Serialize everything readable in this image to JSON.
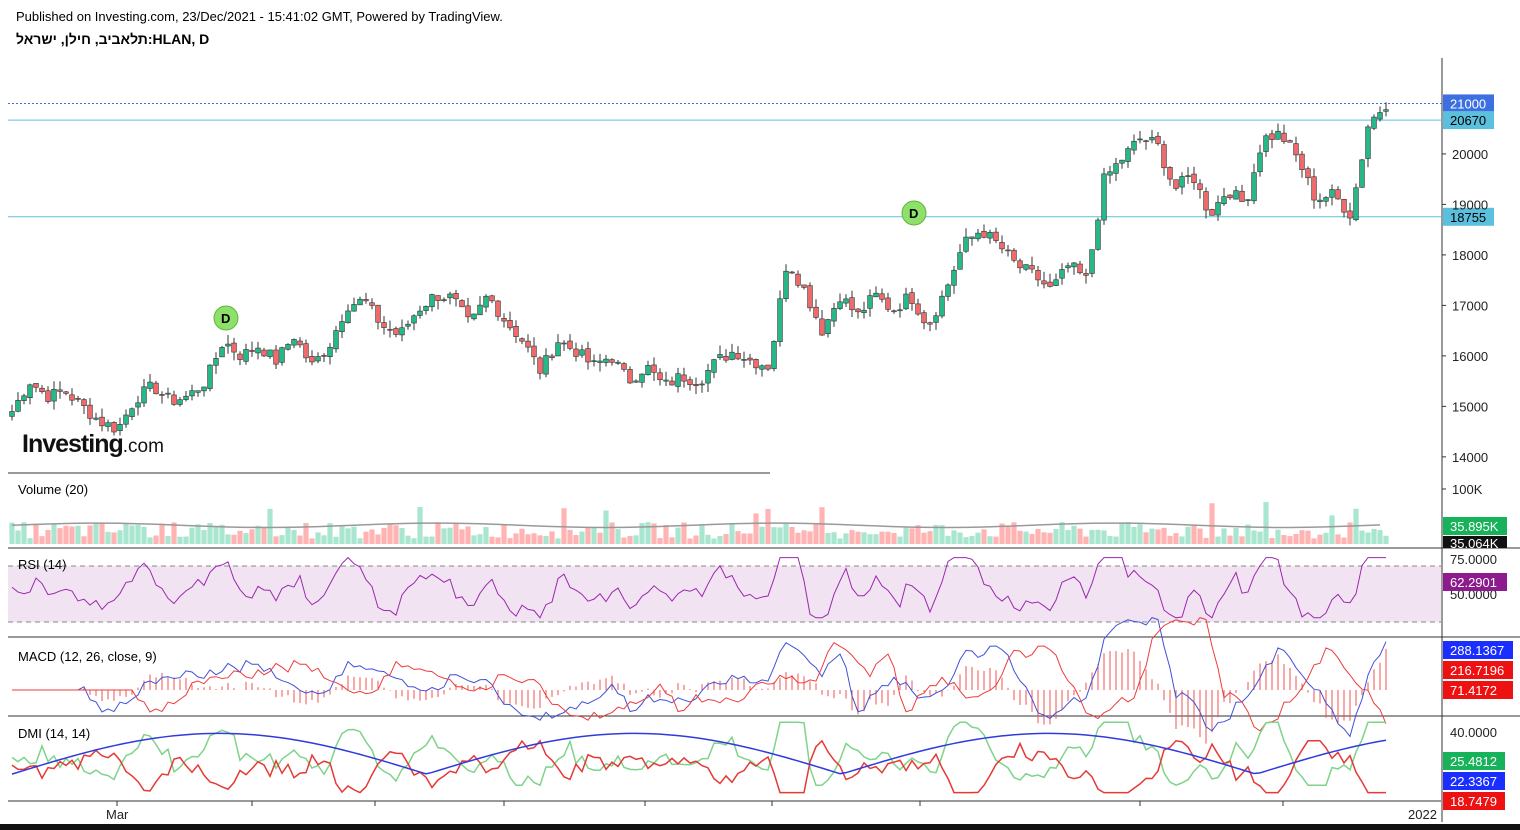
{
  "header": {
    "published": "Published on Investing.com, 23/Dec/2021 - 15:41:02 GMT, Powered by TradingView.",
    "symbol": "תלאביב, חילן, ישראל:HLAN, D"
  },
  "logo": {
    "main": "Investing",
    "suffix": ".com"
  },
  "colors": {
    "up": "#26a69a",
    "down": "#ef5350",
    "bull_fill": "#26b888",
    "bear_fill": "#ef6b6b",
    "hline": "#5bc0de",
    "last_price": "#3d6fe0"
  },
  "chart_data": [
    {
      "type": "candlestick",
      "pane": "price",
      "ylim": [
        13700,
        21900
      ],
      "y_ticks": [
        "14000",
        "15000",
        "16000",
        "17000",
        "18000",
        "19000",
        "20000"
      ],
      "x_ticks": [
        "Mar",
        "2022"
      ],
      "horizontal_levels": [
        {
          "label": "21000",
          "value": 21000,
          "color": "#3d6fe0"
        },
        {
          "label": "20670",
          "value": 20670,
          "color": "#5bc0de"
        },
        {
          "label": "18755",
          "value": 18755,
          "color": "#5bc0de"
        }
      ],
      "dividend_markers": [
        {
          "label": "D",
          "value": 16750,
          "position": "mid-March"
        },
        {
          "label": "D",
          "value": 18830,
          "position": "August"
        }
      ],
      "close_anchors": [
        14900,
        15500,
        15200,
        15300,
        15000,
        14700,
        14550,
        15150,
        15400,
        15100,
        15200,
        15500,
        16300,
        16000,
        16200,
        15900,
        16400,
        15800,
        16200,
        17000,
        17100,
        16600,
        16400,
        16900,
        17200,
        17150,
        16600,
        17200,
        16700,
        16300,
        15700,
        16300,
        16100,
        15800,
        16000,
        15500,
        15800,
        15400,
        15600,
        15500,
        15900,
        16100,
        15900,
        15800,
        17900,
        17300,
        16500,
        17200,
        16800,
        17200,
        16900,
        17200,
        16600,
        17300,
        18200,
        18500,
        18200,
        17800,
        17600,
        17300,
        17800,
        17500,
        19500,
        19900,
        20300,
        20200,
        19300,
        19600,
        18800,
        19300,
        19000,
        20300,
        20400,
        19900,
        19100,
        19200,
        18800,
        20600,
        21000
      ],
      "volume": {
        "title": "Volume (20)",
        "ticks": [
          "100K"
        ],
        "last": "35.895K",
        "ma": "35.064K",
        "ylim": [
          0,
          120000
        ]
      },
      "indicators": [
        {
          "name": "RSI (14)",
          "ylim": [
            20,
            80
          ],
          "ticks": [
            "75.0000",
            "50.0000"
          ],
          "upper_band": 70,
          "lower_band": 30,
          "last": "62.2901"
        },
        {
          "name": "MACD (12, 26, close, 9)",
          "values": {
            "macd": "288.1367",
            "signal": "216.7196",
            "histogram": "71.4172"
          }
        },
        {
          "name": "DMI (14, 14)",
          "ticks": [
            "40.0000"
          ],
          "values": {
            "plus_di": "25.4812",
            "adx": "22.3367",
            "minus_di": "18.7479"
          }
        }
      ]
    }
  ]
}
